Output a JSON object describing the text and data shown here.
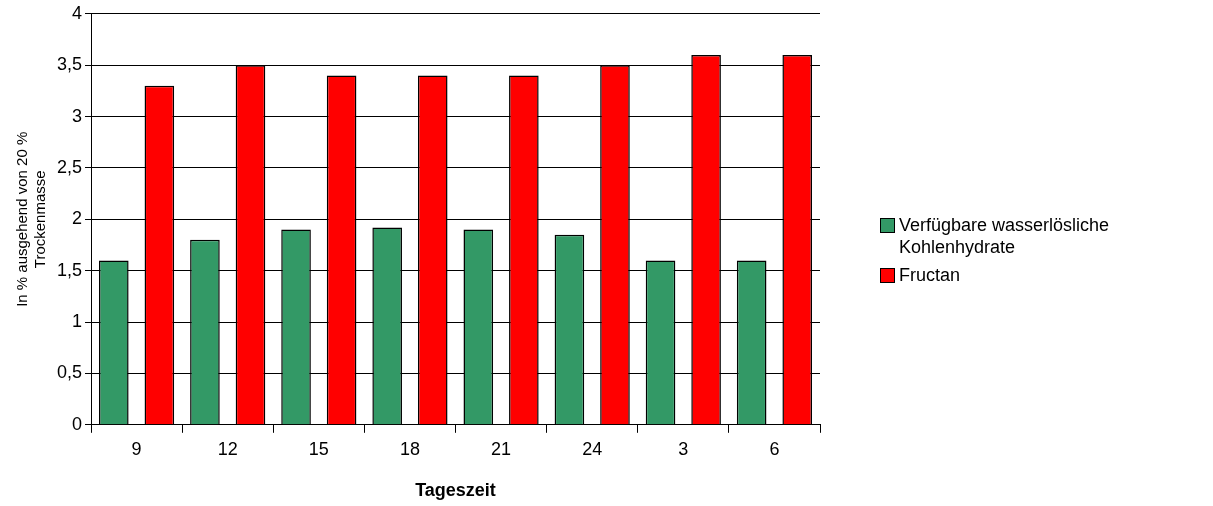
{
  "chart_data": {
    "type": "bar",
    "xlabel": "Tageszeit",
    "ylabel": "In % ausgehend von 20 % Trockenmasse",
    "categories": [
      "9",
      "12",
      "15",
      "18",
      "21",
      "24",
      "3",
      "6"
    ],
    "series": [
      {
        "name": "Verfügbare wasserlösliche Kohlenhydrate",
        "color": "#339966",
        "values": [
          1.6,
          1.8,
          1.9,
          1.92,
          1.9,
          1.85,
          1.6,
          1.6
        ]
      },
      {
        "name": "Fructan",
        "color": "#ff0000",
        "values": [
          3.3,
          3.5,
          3.4,
          3.4,
          3.4,
          3.5,
          3.6,
          3.6
        ]
      }
    ],
    "ylim": [
      0,
      4
    ],
    "yticks": [
      0,
      {
        "value": 0.5,
        "label": "0,5"
      },
      1,
      {
        "value": 1.5,
        "label": "1,5"
      },
      2,
      {
        "value": 2.5,
        "label": "2,5"
      },
      3,
      {
        "value": 3.5,
        "label": "3,5"
      },
      4
    ],
    "grid": "y",
    "legend": "right"
  }
}
